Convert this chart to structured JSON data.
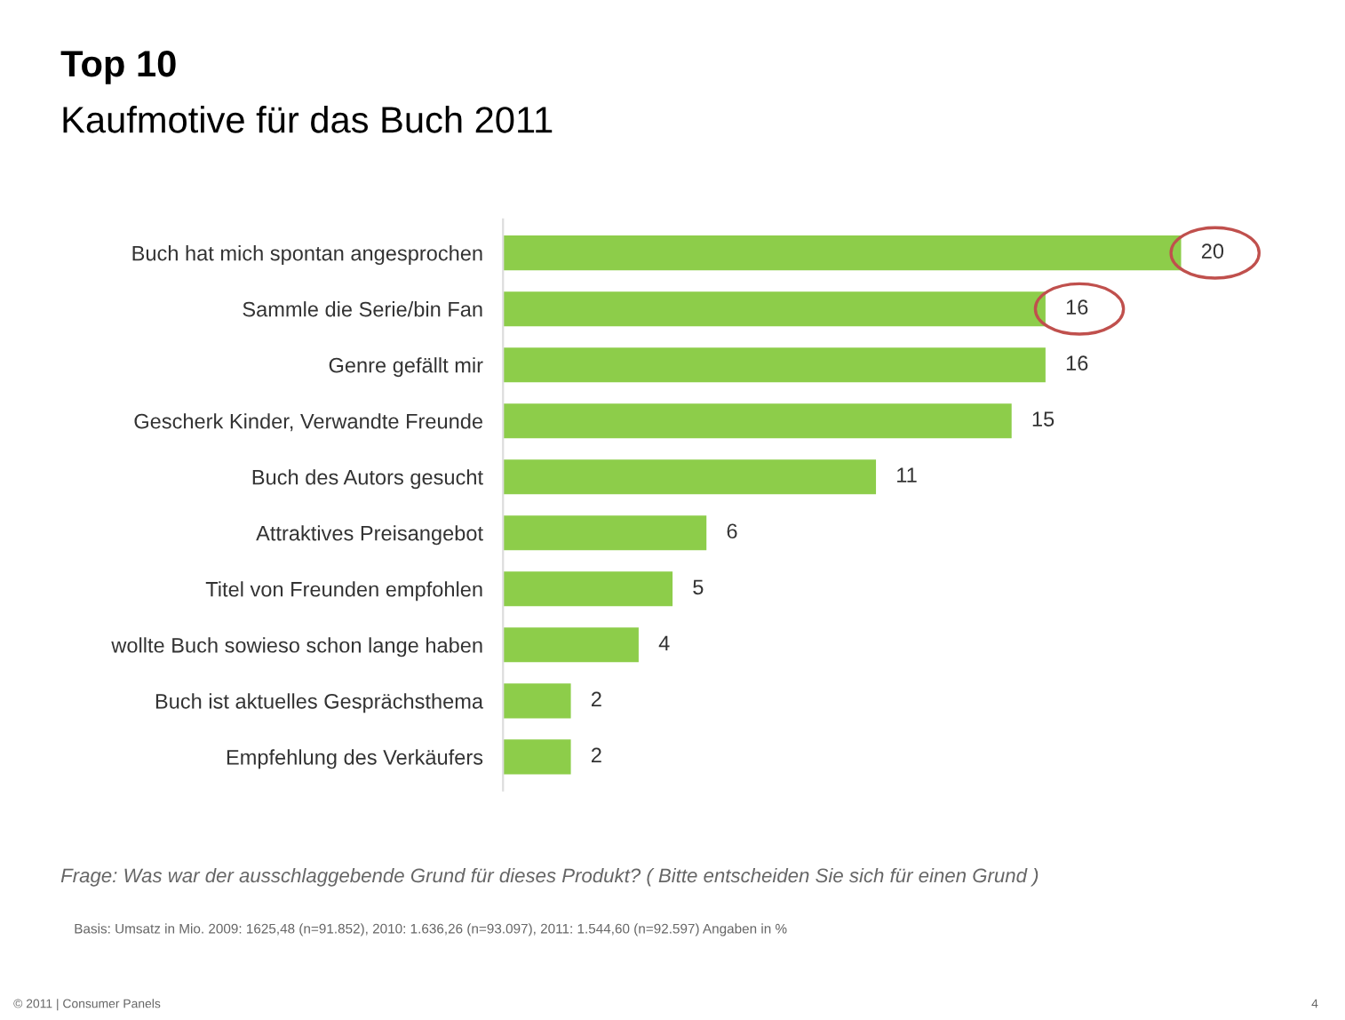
{
  "chart_data": {
    "type": "bar",
    "orientation": "horizontal",
    "title": "Top 10",
    "subtitle": "Kaufmotive für das Buch 2011",
    "categories": [
      "Buch hat mich spontan angesprochen",
      "Sammle die Serie/bin Fan",
      "Genre gefällt mir",
      "Gescherk Kinder, Verwandte Freunde",
      "Buch des Autors gesucht",
      "Attraktives Preisangebot",
      "Titel von Freunden empfohlen",
      "wollte Buch sowieso schon lange haben",
      "Buch ist aktuelles Gesprächsthema",
      "Empfehlung des Verkäufers"
    ],
    "values": [
      20,
      16,
      16,
      15,
      11,
      6,
      5,
      4,
      2,
      2
    ],
    "color": "#8dcd4a",
    "data_labels": true,
    "grid": false,
    "legend": false,
    "annotations": [
      "Frage: Was war der ausschlaggebende Grund für dieses Produkt? ( Bitte entscheiden Sie sich für einen Grund )",
      "Basis: Umsatz in Mio. 2009: 1625,48 (n=91.852), 2010: 1.636,26 (n=93.097), 2011: 1.544,60 (n=92.597) Angaben in %",
      "© 2011 | Consumer Panels",
      "4"
    ]
  }
}
